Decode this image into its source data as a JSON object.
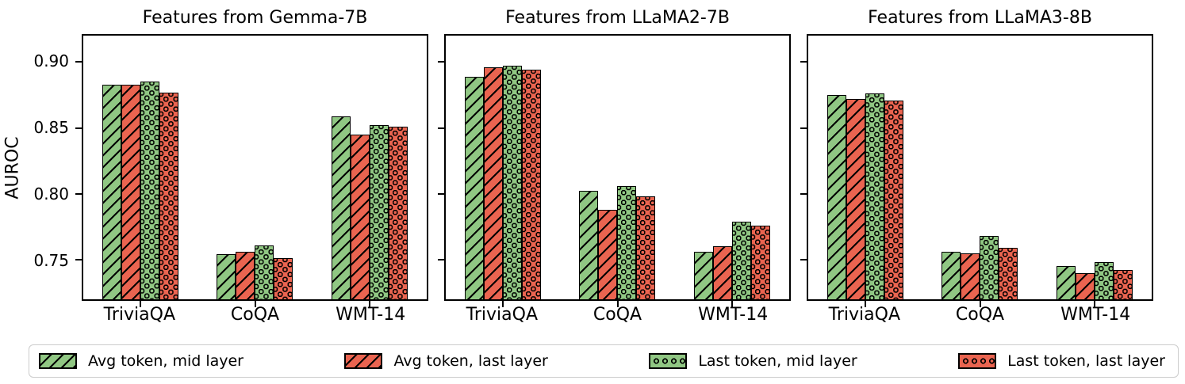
{
  "figure": {
    "ylabel": "AUROC",
    "ytick_labels": [
      "0.90",
      "0.85",
      "0.80",
      "0.75"
    ],
    "colors": {
      "green": "#90C783",
      "red": "#EA6450",
      "bar_edge": "#000000",
      "legend_border": "#CCCCCC",
      "background": "#FFFFFF"
    },
    "series_styles": [
      {
        "color_key": "green",
        "hatch": "diag"
      },
      {
        "color_key": "red",
        "hatch": "diag"
      },
      {
        "color_key": "green",
        "hatch": "dots"
      },
      {
        "color_key": "red",
        "hatch": "dots"
      }
    ],
    "legend": [
      {
        "label": "Avg token, mid layer"
      },
      {
        "label": "Avg token, last layer"
      },
      {
        "label": "Last token, mid layer"
      },
      {
        "label": "Last token, last layer"
      }
    ],
    "legend_position": "bottom"
  },
  "chart_data": [
    {
      "type": "bar",
      "title": "Features from Gemma-7B",
      "categories": [
        "TriviaQA",
        "CoQA",
        "WMT-14"
      ],
      "series": [
        {
          "name": "Avg token, mid layer",
          "values": [
            0.883,
            0.754,
            0.859
          ]
        },
        {
          "name": "Avg token, last layer",
          "values": [
            0.883,
            0.756,
            0.845
          ]
        },
        {
          "name": "Last token, mid layer",
          "values": [
            0.885,
            0.761,
            0.852
          ]
        },
        {
          "name": "Last token, last layer",
          "values": [
            0.877,
            0.751,
            0.851
          ]
        }
      ],
      "xlabel": "",
      "ylabel": "AUROC",
      "ylim": [
        0.72,
        0.92
      ],
      "yticks": [
        0.9,
        0.85,
        0.8,
        0.75
      ],
      "grid": false
    },
    {
      "type": "bar",
      "title": "Features from LLaMA2-7B",
      "categories": [
        "TriviaQA",
        "CoQA",
        "WMT-14"
      ],
      "series": [
        {
          "name": "Avg token, mid layer",
          "values": [
            0.889,
            0.802,
            0.756
          ]
        },
        {
          "name": "Avg token, last layer",
          "values": [
            0.896,
            0.788,
            0.76
          ]
        },
        {
          "name": "Last token, mid layer",
          "values": [
            0.897,
            0.806,
            0.779
          ]
        },
        {
          "name": "Last token, last layer",
          "values": [
            0.894,
            0.798,
            0.776
          ]
        }
      ],
      "xlabel": "",
      "ylabel": "",
      "ylim": [
        0.72,
        0.92
      ],
      "yticks": [
        0.9,
        0.85,
        0.8,
        0.75
      ],
      "grid": false
    },
    {
      "type": "bar",
      "title": "Features from LLaMA3-8B",
      "categories": [
        "TriviaQA",
        "CoQA",
        "WMT-14"
      ],
      "series": [
        {
          "name": "Avg token, mid layer",
          "values": [
            0.875,
            0.756,
            0.745
          ]
        },
        {
          "name": "Avg token, last layer",
          "values": [
            0.872,
            0.755,
            0.74
          ]
        },
        {
          "name": "Last token, mid layer",
          "values": [
            0.876,
            0.768,
            0.748
          ]
        },
        {
          "name": "Last token, last layer",
          "values": [
            0.871,
            0.759,
            0.742
          ]
        }
      ],
      "xlabel": "",
      "ylabel": "",
      "ylim": [
        0.72,
        0.92
      ],
      "yticks": [
        0.9,
        0.85,
        0.8,
        0.75
      ],
      "grid": false
    }
  ]
}
